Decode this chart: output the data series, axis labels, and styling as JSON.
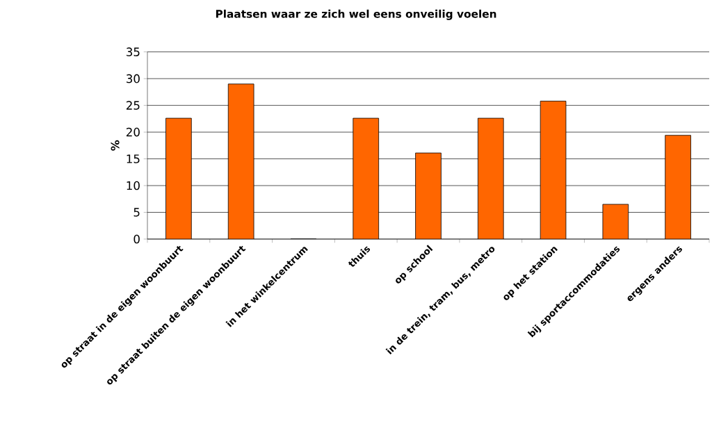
{
  "chart_data": {
    "type": "bar",
    "title": "Plaatsen waar ze zich wel eens onveilig voelen",
    "ylabel": "%",
    "categories": [
      "op straat in de eigen woonbuurt",
      "op straat buiten de eigen woonbuurt",
      "in het winkelcentrum",
      "thuis",
      "op school",
      "in de trein, tram, bus, metro",
      "op het station",
      "bij sportaccommodaties",
      "ergens anders"
    ],
    "values": [
      22.6,
      29.0,
      0,
      22.6,
      16.1,
      22.6,
      25.8,
      6.5,
      19.4
    ],
    "color": "#ff6600",
    "ylim": [
      0,
      35
    ],
    "yticks": [
      0,
      5,
      10,
      15,
      20,
      25,
      30,
      35
    ],
    "grid": "y"
  }
}
